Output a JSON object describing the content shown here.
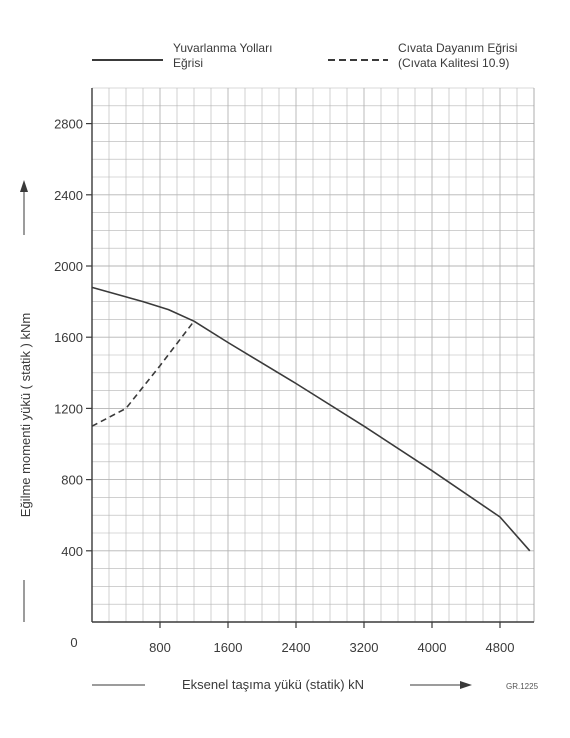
{
  "legend": {
    "solid_line1": "Yuvarlanma Yolları",
    "solid_line2": "Eğrisi",
    "dashed_line1": "Cıvata Dayanım Eğrisi",
    "dashed_line2": "(Cıvata Kalitesi 10.9)"
  },
  "figure_code": "GR.1225",
  "origin_label": "0",
  "chart_data": {
    "type": "line",
    "xlabel": "Eksenel taşıma yükü  (statik) kN",
    "ylabel": "Eğilme momenti yükü  ( statik )    kNm",
    "xlim": [
      0,
      5200
    ],
    "ylim": [
      0,
      3000
    ],
    "x_ticks": [
      800,
      1600,
      2400,
      3200,
      4000,
      4800
    ],
    "y_ticks": [
      400,
      800,
      1200,
      1600,
      2000,
      2400,
      2800
    ],
    "grid": true,
    "legend_position": "top",
    "series": [
      {
        "name": "Yuvarlanma Yolları Eğrisi",
        "style": "solid",
        "x": [
          0,
          300,
          600,
          900,
          1200,
          1600,
          2400,
          3200,
          4000,
          4800,
          5150
        ],
        "y": [
          1880,
          1840,
          1800,
          1755,
          1690,
          1570,
          1340,
          1100,
          850,
          590,
          400
        ]
      },
      {
        "name": "Cıvata Dayanım Eğrisi (Cıvata Kalitesi 10.9)",
        "style": "dashed",
        "x": [
          0,
          400,
          800,
          1200
        ],
        "y": [
          1100,
          1200,
          1440,
          1690
        ]
      }
    ]
  }
}
